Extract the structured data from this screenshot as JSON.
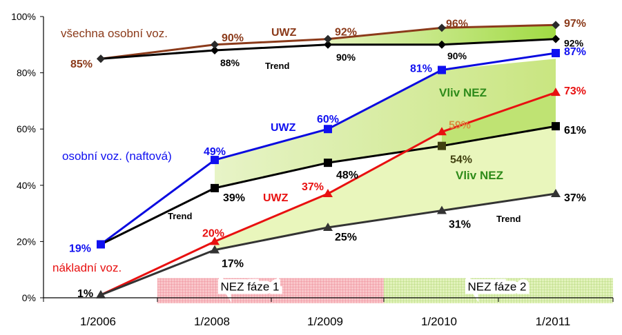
{
  "chart_data": {
    "type": "line",
    "categories": [
      "1/2006",
      "1/2008",
      "1/2009",
      "1/2010",
      "1/2011"
    ],
    "ylim": [
      0,
      100
    ],
    "y_ticks": [
      "0%",
      "20%",
      "40%",
      "60%",
      "80%",
      "100%"
    ],
    "grid": false,
    "series": [
      {
        "id": "all_uwz",
        "values": [
          85,
          90,
          92,
          96,
          97
        ],
        "labels": [
          "85%",
          "90%",
          "92%",
          "96%",
          "97%"
        ],
        "color": "#8B3A1A",
        "marker": "diamond"
      },
      {
        "id": "all_trend",
        "values": [
          85,
          88,
          90,
          90,
          92
        ],
        "labels": [
          "",
          "88%",
          "90%",
          "90%",
          "92%"
        ],
        "color": "#000000",
        "marker": "diamond"
      },
      {
        "id": "diesel_uwz",
        "values": [
          19,
          49,
          60,
          81,
          87
        ],
        "labels": [
          "19%",
          "49%",
          "60%",
          "81%",
          "87%"
        ],
        "color": "#0A0AE0",
        "marker": "square"
      },
      {
        "id": "diesel_trend",
        "values": [
          19,
          39,
          48,
          54,
          61
        ],
        "labels": [
          "",
          "39%",
          "48%",
          "54%",
          "61%"
        ],
        "color": "#000000",
        "marker": "square"
      },
      {
        "id": "truck_uwz",
        "values": [
          1,
          20,
          37,
          59,
          73
        ],
        "labels": [
          "1%",
          "20%",
          "37%",
          "59%",
          "73%"
        ],
        "color": "#E81010",
        "marker": "triangle"
      },
      {
        "id": "truck_trend",
        "values": [
          1,
          17,
          25,
          31,
          37
        ],
        "labels": [
          "",
          "17%",
          "25%",
          "31%",
          "37%"
        ],
        "color": "#333333",
        "marker": "triangle"
      }
    ],
    "annotations": {
      "all_name": "všechna osobní voz.",
      "all_uwz": "UWZ",
      "all_trend": "Trend",
      "diesel_name": "osobní voz. (naftová)",
      "diesel_uwz": "UWZ",
      "diesel_trend": "Trend",
      "truck_name": "nákladní voz.",
      "truck_uwz": "UWZ",
      "truck_trend": "Trend",
      "effect_1": "Vliv NEZ",
      "effect_2": "Vliv NEZ"
    },
    "phases": [
      {
        "label": "NEZ fáze 1",
        "from": "1/2008",
        "to": "1/2010",
        "color": "#F5A0A8"
      },
      {
        "label": "NEZ fáze 2",
        "from": "1/2010",
        "to": "1/2011",
        "color": "#C8E890"
      }
    ],
    "colors": {
      "effect_fill": "#D5EDA0",
      "effect_fill_dark": "#A8D848"
    }
  }
}
